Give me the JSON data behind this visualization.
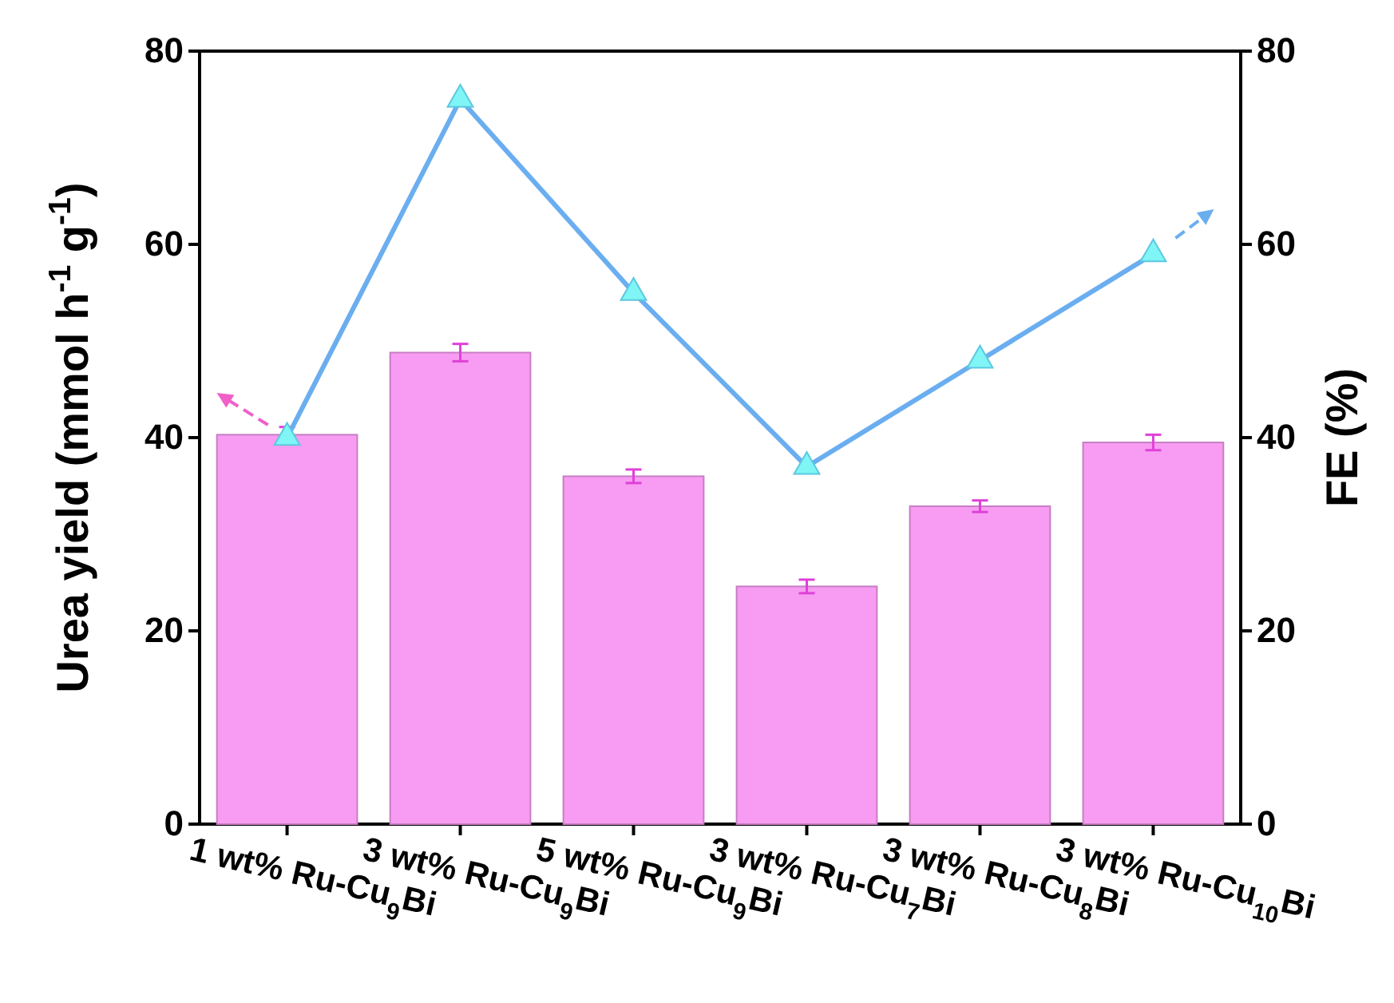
{
  "chart_data": {
    "type": "bar",
    "categories": [
      "1 wt% Ru-Cu$_{9}$Bi",
      "3 wt% Ru-Cu$_{9}$Bi",
      "5 wt% Ru-Cu$_{9}$Bi",
      "3 wt% Ru-Cu$_{7}$Bi",
      "3 wt% Ru-Cu$_{8}$Bi",
      "3 wt% Ru-Cu$_{10}$Bi"
    ],
    "ylabel": "Urea yield (mmol h$^{-1}$ g$^{-1}$)",
    "y2label": "FE (%)",
    "ylim": [
      0,
      80
    ],
    "yticks": [
      0,
      20,
      40,
      60,
      80
    ],
    "y2lim": [
      0,
      80
    ],
    "y2ticks": [
      0,
      20,
      40,
      60,
      80
    ],
    "grid": false,
    "series": [
      {
        "color": "#f79cf2",
        "values": [
          40.3,
          48.8,
          36.0,
          24.6,
          32.9,
          39.5
        ],
        "errors": [
          0.8,
          0.9,
          0.7,
          0.7,
          0.6,
          0.8
        ]
      },
      {
        "type": "line",
        "axis": "y2",
        "color": "#6aaef0",
        "marker": "triangle",
        "line_style": "solid",
        "values": [
          40,
          75,
          55,
          37,
          48,
          59
        ]
      }
    ]
  }
}
